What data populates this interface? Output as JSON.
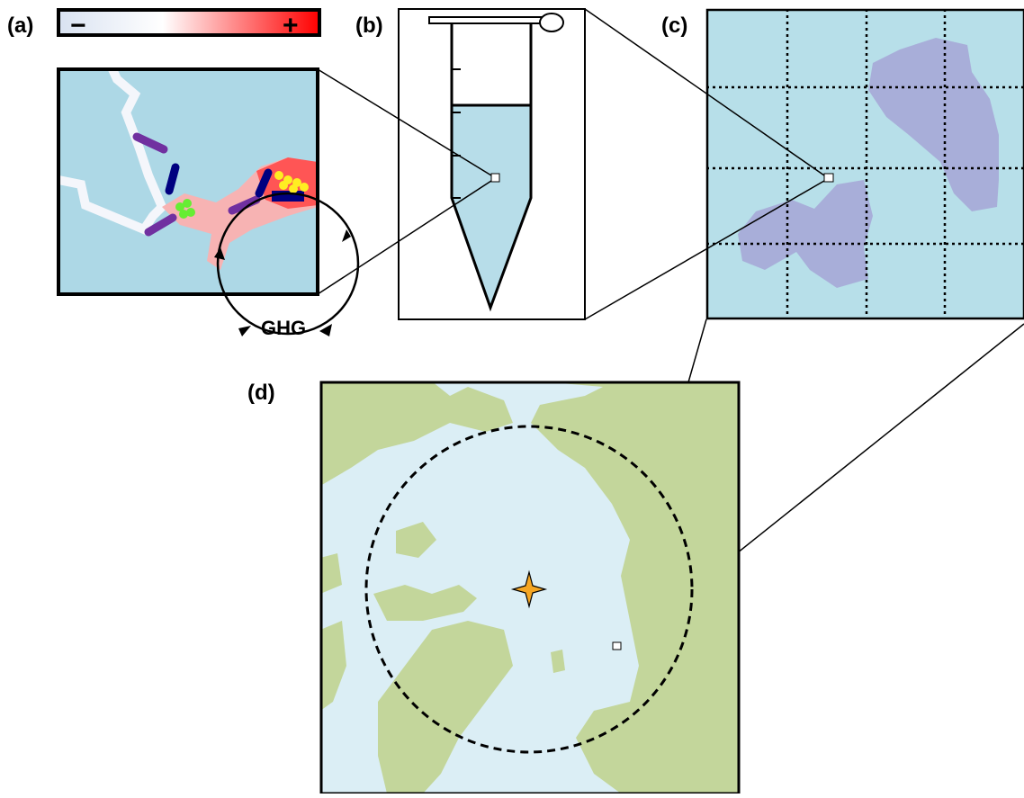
{
  "panels": [
    {
      "label": "(a)"
    },
    {
      "label": "(b)"
    },
    {
      "label": "(c)"
    },
    {
      "label": "(d)"
    }
  ],
  "colorbar": {
    "low": "−",
    "high": "+"
  },
  "cycle_label": "GHG"
}
